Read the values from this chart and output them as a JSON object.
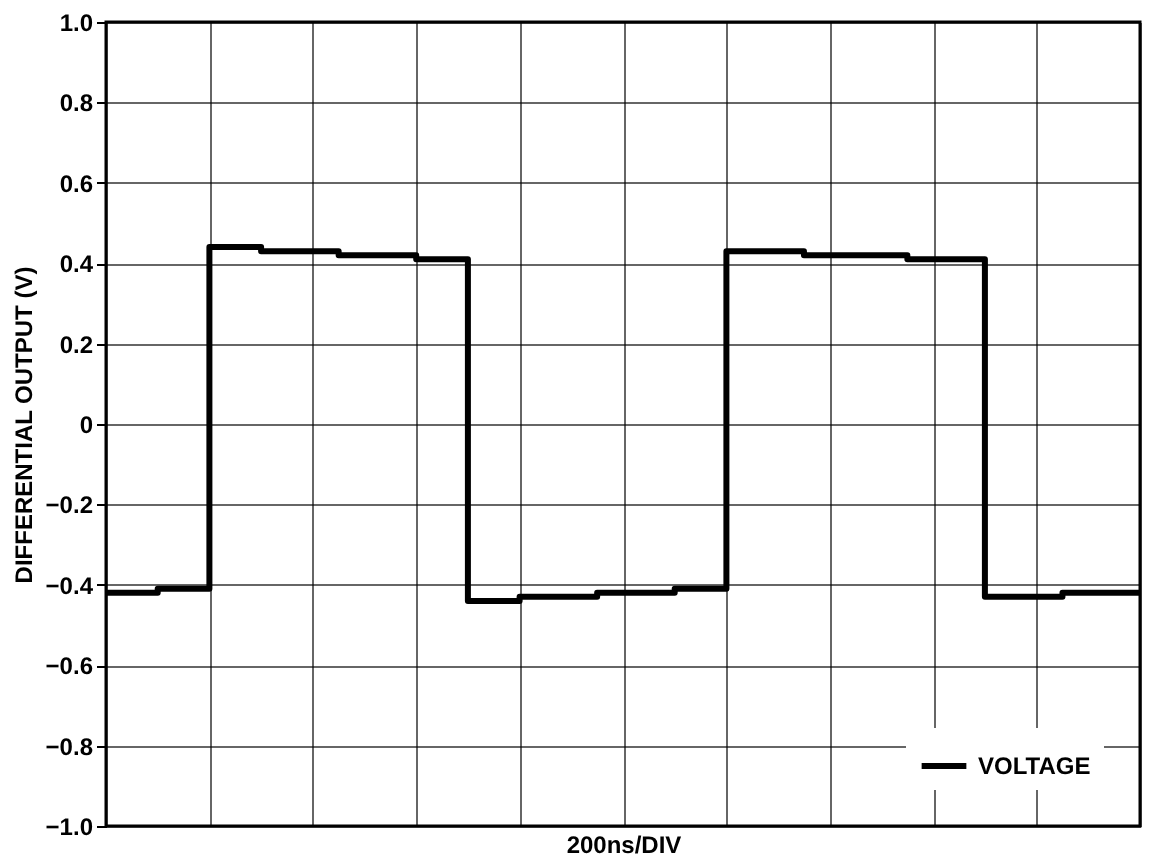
{
  "chart_data": {
    "type": "step",
    "xlabel": "200ns/DIV",
    "ylabel": "DIFFERENTIAL OUTPUT (V)",
    "categories": [
      null,
      null,
      null,
      null,
      null,
      null,
      null,
      null,
      null,
      null,
      null,
      null,
      null,
      null,
      null,
      null,
      null,
      null,
      null,
      null,
      null,
      null,
      null,
      null,
      null,
      null,
      null,
      null,
      null,
      null,
      null,
      null,
      null,
      null,
      null,
      null,
      null,
      null,
      null,
      null,
      null
    ],
    "series": [
      {
        "name": "VOLTAGE",
        "color": "#000000",
        "values": [
          -0.42,
          -0.42,
          -0.41,
          -0.41,
          0.44,
          0.44,
          0.43,
          0.43,
          0.43,
          0.42,
          0.42,
          0.42,
          0.41,
          0.41,
          -0.44,
          -0.44,
          -0.43,
          -0.43,
          -0.43,
          -0.42,
          -0.42,
          -0.42,
          -0.41,
          -0.41,
          0.43,
          0.43,
          0.43,
          0.42,
          0.42,
          0.42,
          0.42,
          0.41,
          0.41,
          0.41,
          -0.43,
          -0.43,
          -0.43,
          -0.42,
          -0.42,
          -0.42,
          -0.42
        ]
      }
    ],
    "ylim": [
      -1.0,
      1.0
    ],
    "yticks": [
      {
        "value": -1.0,
        "label": "−1.0"
      },
      {
        "value": -0.8,
        "label": "−0.8"
      },
      {
        "value": -0.6,
        "label": "−0.6"
      },
      {
        "value": -0.4,
        "label": "−0.4"
      },
      {
        "value": -0.2,
        "label": "−0.2"
      },
      0,
      {
        "value": 0.2,
        "label": "0.2"
      },
      {
        "value": 0.4,
        "label": "0.4"
      },
      {
        "value": 0.6,
        "label": "0.6"
      },
      {
        "value": 0.8,
        "label": "0.8"
      },
      {
        "value": 1.0,
        "label": "1.0"
      }
    ],
    "grid": true,
    "legend": "bottom right",
    "tick_labels": "y",
    "line_style": "solid",
    "marker": "none"
  }
}
